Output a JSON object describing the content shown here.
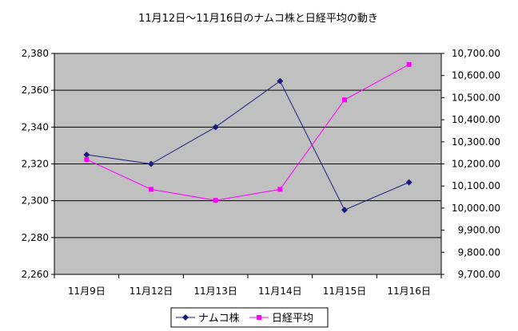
{
  "chart_data": {
    "type": "line",
    "title": "11月12日〜11月16日のナムコ株と日経平均の動き",
    "categories": [
      "11月9日",
      "11月12日",
      "11月13日",
      "11月14日",
      "11月15日",
      "11月16日"
    ],
    "y_left": {
      "min": 2260,
      "max": 2380,
      "step": 20,
      "tick_labels": [
        "2,260",
        "2,280",
        "2,300",
        "2,320",
        "2,340",
        "2,360",
        "2,380"
      ]
    },
    "y_right": {
      "min": 9700,
      "max": 10700,
      "step": 100,
      "tick_labels": [
        "9,700.00",
        "9,800.00",
        "9,900.00",
        "10,000.00",
        "10,100.00",
        "10,200.00",
        "10,300.00",
        "10,400.00",
        "10,500.00",
        "10,600.00",
        "10,700.00"
      ]
    },
    "series": [
      {
        "name": "ナムコ株",
        "axis": "left",
        "color": "#1c1c7c",
        "marker": "diamond",
        "values": [
          2325,
          2320,
          2340,
          2365,
          2295,
          2310
        ]
      },
      {
        "name": "日経平均",
        "axis": "right",
        "color": "#ff00ff",
        "marker": "square",
        "values": [
          10220,
          10085,
          10035,
          10085,
          10490,
          10650
        ]
      }
    ],
    "grid": true,
    "plot_background": "#c0c0c0",
    "legend_position": "bottom"
  }
}
